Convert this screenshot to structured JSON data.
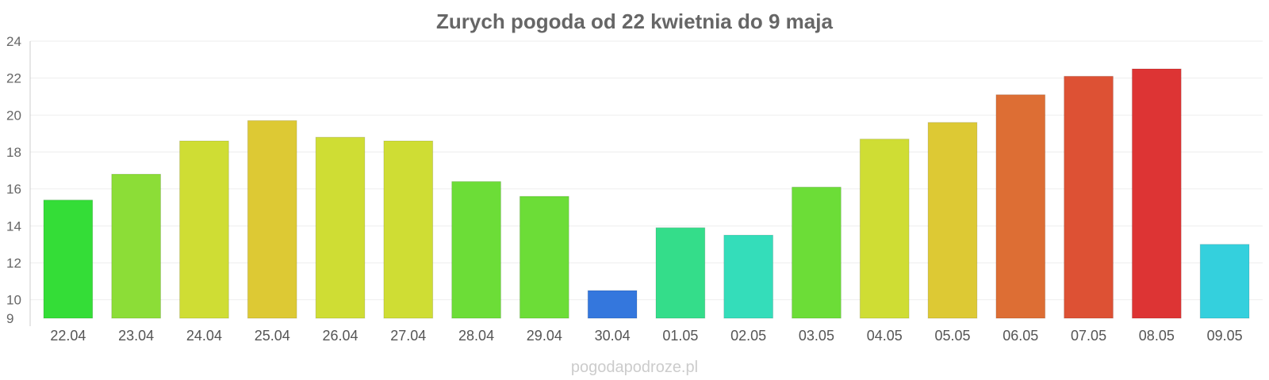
{
  "chart_data": {
    "type": "bar",
    "title": "Zurych pogoda od 22 kwietnia do 9 maja",
    "xlabel": "",
    "ylabel": "",
    "categories": [
      "22.04",
      "23.04",
      "24.04",
      "25.04",
      "26.04",
      "27.04",
      "28.04",
      "29.04",
      "30.04",
      "01.05",
      "02.05",
      "03.05",
      "04.05",
      "05.05",
      "06.05",
      "07.05",
      "08.05",
      "09.05"
    ],
    "values": [
      15.4,
      16.8,
      18.6,
      19.7,
      18.8,
      18.6,
      16.4,
      15.6,
      10.5,
      13.9,
      13.5,
      16.1,
      18.7,
      19.6,
      21.1,
      22.1,
      22.5,
      13.0
    ],
    "colors": [
      "#34dd37",
      "#8cdd37",
      "#cfdd34",
      "#ddc934",
      "#cfdd34",
      "#cfdd34",
      "#6cdd37",
      "#6cdd37",
      "#3477dd",
      "#34dd8a",
      "#34ddba",
      "#6cdd37",
      "#cfdd34",
      "#ddc934",
      "#dd6e34",
      "#dd5134",
      "#dd3434",
      "#34d0dd"
    ],
    "ylim": [
      9,
      24
    ],
    "yticks": [
      9,
      10,
      12,
      14,
      16,
      18,
      20,
      22,
      24
    ],
    "grid": true,
    "legend": "none"
  },
  "watermark": "pogodapodroze.pl"
}
